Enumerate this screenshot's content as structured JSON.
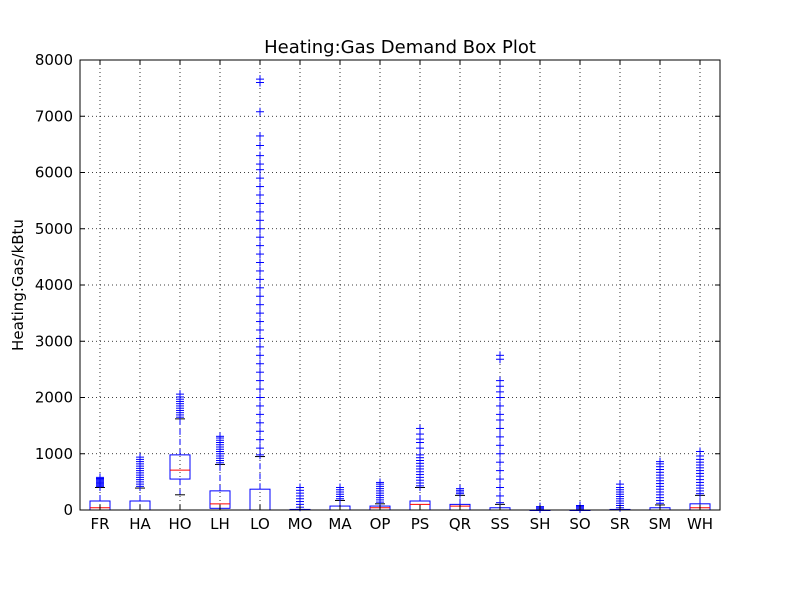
{
  "chart_data": {
    "type": "box",
    "title": "Heating:Gas Demand Box Plot",
    "xlabel": "",
    "ylabel": "Heating:Gas/kBtu",
    "ylim": [
      0,
      8000
    ],
    "yticks": [
      0,
      1000,
      2000,
      3000,
      4000,
      5000,
      6000,
      7000,
      8000
    ],
    "grid": true,
    "colors": {
      "box": "#0000ff",
      "median": "#ff0000",
      "whisker": "#0000ff",
      "cap": "#000000",
      "flier": "#0000ff",
      "grid": "#000000"
    },
    "categories": [
      "FR",
      "HA",
      "HO",
      "LH",
      "LO",
      "MO",
      "MA",
      "OP",
      "PS",
      "QR",
      "SS",
      "SH",
      "SO",
      "SR",
      "SM",
      "WH"
    ],
    "boxes": [
      {
        "label": "FR",
        "whislo": 0,
        "q1": 0,
        "med": 40,
        "q3": 160,
        "whishi": 400,
        "fliers": [
          420,
          440,
          460,
          480,
          500,
          520,
          540,
          560,
          580
        ]
      },
      {
        "label": "HA",
        "whislo": 0,
        "q1": 0,
        "med": 0,
        "q3": 160,
        "whishi": 390,
        "fliers": [
          420,
          460,
          500,
          540,
          580,
          620,
          660,
          700,
          740,
          780,
          820,
          860,
          900,
          940
        ]
      },
      {
        "label": "HO",
        "whislo": 270,
        "q1": 550,
        "med": 710,
        "q3": 980,
        "whishi": 1620,
        "fliers": [
          1650,
          1690,
          1730,
          1770,
          1810,
          1850,
          1890,
          1930,
          1970,
          2010,
          2060
        ]
      },
      {
        "label": "LH",
        "whislo": 0,
        "q1": 30,
        "med": 110,
        "q3": 340,
        "whishi": 810,
        "fliers": [
          840,
          880,
          920,
          960,
          1000,
          1040,
          1080,
          1120,
          1160,
          1200,
          1240,
          1280,
          1310
        ]
      },
      {
        "label": "LO",
        "whislo": 0,
        "q1": 0,
        "med": 0,
        "q3": 370,
        "whishi": 950,
        "fliers": [
          980,
          1100,
          1250,
          1400,
          1550,
          1700,
          1850,
          2000,
          2150,
          2300,
          2450,
          2600,
          2750,
          2900,
          3050,
          3200,
          3350,
          3500,
          3650,
          3800,
          3950,
          4100,
          4250,
          4400,
          4550,
          4700,
          4850,
          5000,
          5150,
          5300,
          5450,
          5600,
          5750,
          5900,
          6050,
          6150,
          6300,
          6480,
          6650,
          7080,
          7600,
          7660
        ]
      },
      {
        "label": "MO",
        "whislo": 0,
        "q1": 0,
        "med": 0,
        "q3": 10,
        "whishi": 10,
        "fliers": [
          50,
          100,
          150,
          200,
          250,
          300,
          350,
          400
        ]
      },
      {
        "label": "MA",
        "whislo": 0,
        "q1": 0,
        "med": 0,
        "q3": 70,
        "whishi": 170,
        "fliers": [
          200,
          240,
          280,
          320,
          360,
          400
        ]
      },
      {
        "label": "OP",
        "whislo": 0,
        "q1": 0,
        "med": 40,
        "q3": 70,
        "whishi": 110,
        "fliers": [
          140,
          180,
          220,
          260,
          300,
          340,
          380,
          420,
          460,
          490
        ]
      },
      {
        "label": "PS",
        "whislo": 0,
        "q1": 0,
        "med": 100,
        "q3": 160,
        "whishi": 400,
        "fliers": [
          430,
          480,
          530,
          580,
          630,
          680,
          730,
          780,
          830,
          880,
          930,
          980,
          1100,
          1200,
          1260,
          1350,
          1450
        ]
      },
      {
        "label": "QR",
        "whislo": 0,
        "q1": 0,
        "med": 70,
        "q3": 100,
        "whishi": 260,
        "fliers": [
          290,
          320,
          350,
          380
        ]
      },
      {
        "label": "SS",
        "whislo": 0,
        "q1": 0,
        "med": 0,
        "q3": 40,
        "whishi": 100,
        "fliers": [
          130,
          250,
          400,
          550,
          700,
          850,
          1000,
          1150,
          1300,
          1450,
          1600,
          1700,
          1850,
          2000,
          2100,
          2200,
          2300,
          2680,
          2750
        ]
      },
      {
        "label": "SH",
        "whislo": 0,
        "q1": 0,
        "med": 0,
        "q3": 0,
        "whishi": 0,
        "fliers": [
          20,
          40,
          60
        ]
      },
      {
        "label": "SO",
        "whislo": 0,
        "q1": 0,
        "med": 0,
        "q3": 0,
        "whishi": 0,
        "fliers": [
          20,
          40,
          60,
          80
        ]
      },
      {
        "label": "SR",
        "whislo": 0,
        "q1": 0,
        "med": 0,
        "q3": 10,
        "whishi": 10,
        "fliers": [
          40,
          80,
          120,
          160,
          200,
          240,
          280,
          320,
          360,
          400,
          460
        ]
      },
      {
        "label": "SM",
        "whislo": 0,
        "q1": 0,
        "med": 0,
        "q3": 40,
        "whishi": 90,
        "fliers": [
          120,
          170,
          220,
          270,
          320,
          370,
          420,
          470,
          520,
          570,
          620,
          670,
          720,
          770,
          820,
          860
        ]
      },
      {
        "label": "WH",
        "whislo": 0,
        "q1": 0,
        "med": 40,
        "q3": 110,
        "whishi": 260,
        "fliers": [
          290,
          340,
          390,
          440,
          490,
          540,
          600,
          650,
          700,
          750,
          800,
          850,
          900,
          960,
          1040
        ]
      }
    ]
  }
}
